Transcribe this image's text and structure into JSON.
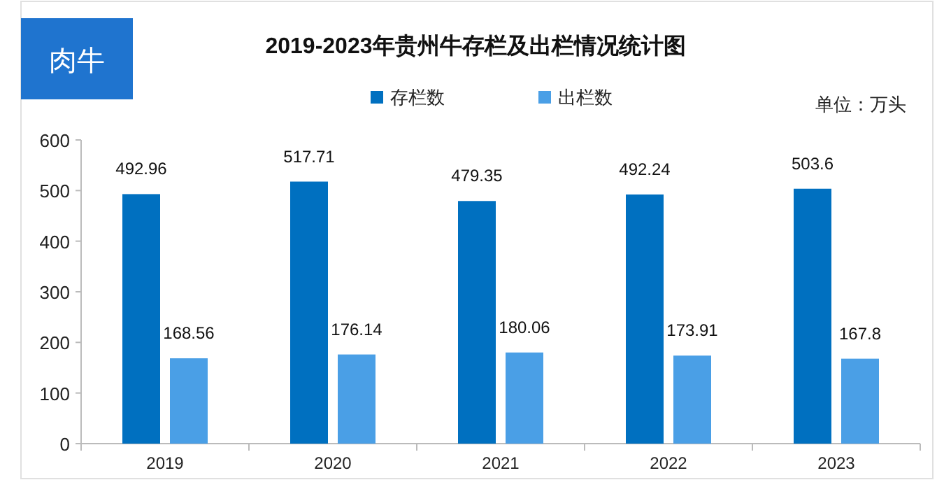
{
  "chart_data": {
    "type": "bar",
    "title": "2019-2023年贵州牛存栏及出栏情况统计图",
    "categories": [
      "2019",
      "2020",
      "2021",
      "2022",
      "2023"
    ],
    "series": [
      {
        "name": "存栏数",
        "color": "#0070c0",
        "values": [
          492.96,
          517.71,
          479.35,
          492.24,
          503.6
        ]
      },
      {
        "name": "出栏数",
        "color": "#4a9fe6",
        "values": [
          168.56,
          176.14,
          180.06,
          173.91,
          167.8
        ]
      }
    ],
    "ylim": [
      0,
      600
    ],
    "yticks": [
      0,
      100,
      200,
      300,
      400,
      500,
      600
    ],
    "grid": false,
    "legend": "top",
    "data_labels": true,
    "annotations": [
      "肉牛",
      "单位：万头"
    ]
  }
}
